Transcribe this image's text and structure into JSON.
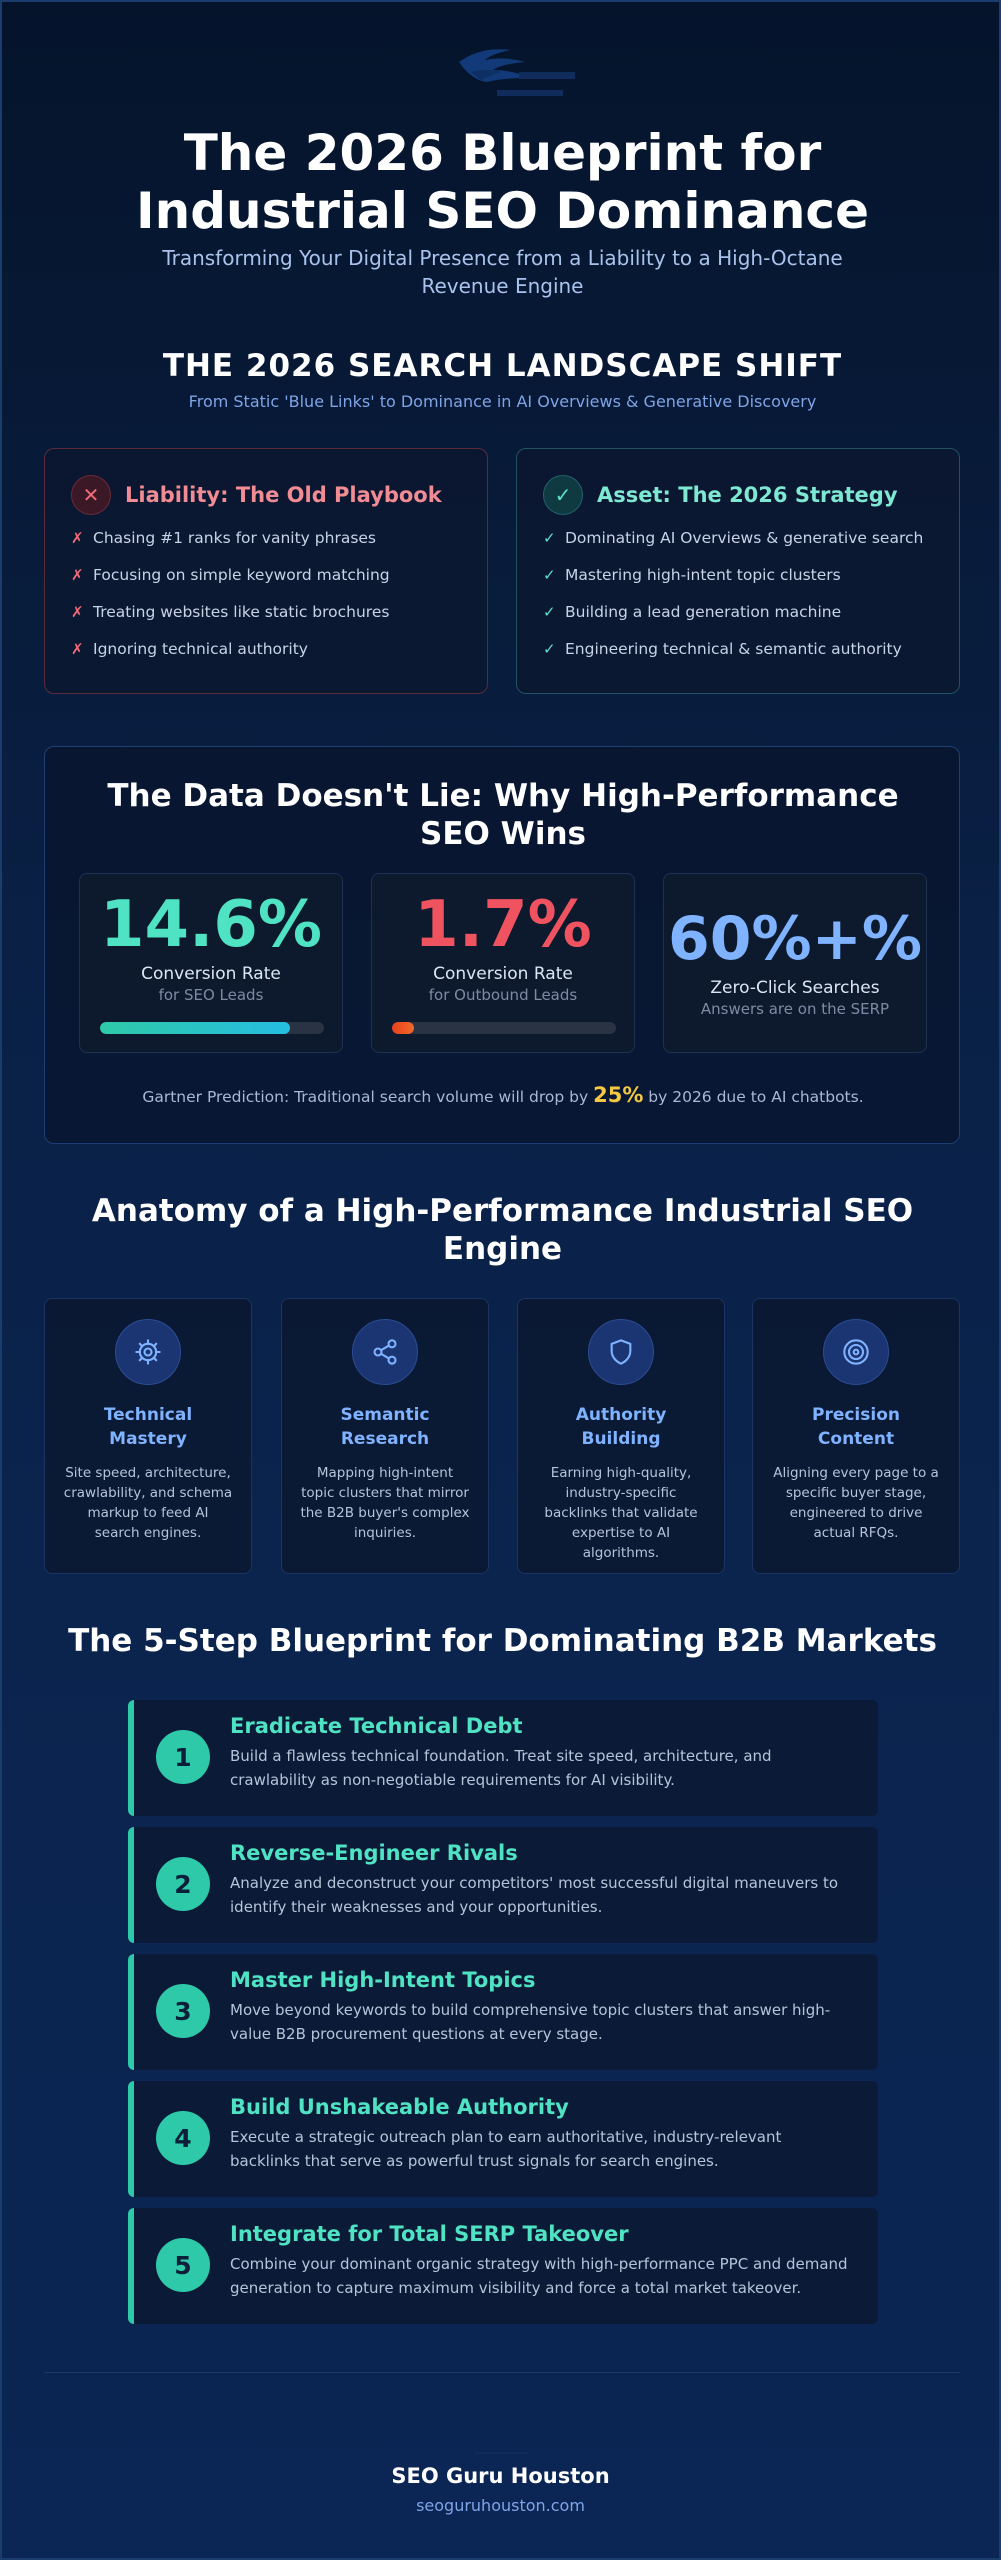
{
  "header": {
    "title": "The 2026 Blueprint for Industrial SEO Dominance",
    "subtitle": "Transforming Your Digital Presence from a Liability to a High-Octane Revenue Engine",
    "logo_icon": "eagle-logo-icon"
  },
  "landscape": {
    "title": "THE 2026 SEARCH LANDSCAPE SHIFT",
    "subtitle": "From Static 'Blue Links' to Dominance in AI Overviews & Generative Discovery",
    "liability": {
      "icon": "x-icon",
      "mark": "✗",
      "title": "Liability: The Old Playbook",
      "items": [
        "Chasing #1 ranks for vanity phrases",
        "Focusing on simple keyword matching",
        "Treating websites like static brochures",
        "Ignoring technical authority"
      ]
    },
    "asset": {
      "icon": "check-icon",
      "mark": "✓",
      "title": "Asset: The 2026 Strategy",
      "items": [
        "Dominating AI Overviews & generative search",
        "Mastering high-intent topic clusters",
        "Building a lead generation machine",
        "Engineering technical & semantic authority"
      ]
    }
  },
  "data": {
    "title": "The Data Doesn't Lie: Why High-Performance SEO Wins",
    "stats": [
      {
        "value": "14.6%",
        "label": "Conversion Rate",
        "sub": "for SEO Leads",
        "bar_fill_percent": 85,
        "color": "#4fe3c3"
      },
      {
        "value": "1.7%",
        "label": "Conversion Rate",
        "sub": "for Outbound Leads",
        "bar_fill_percent": 10,
        "color": "#ef5360"
      },
      {
        "value": "60%+%",
        "label": "Zero-Click Searches",
        "sub": "Answers are on the SERP",
        "color": "#7fb2ff"
      }
    ],
    "gartner_prefix": "Gartner Prediction: Traditional search volume will drop by ",
    "gartner_highlight": "25%",
    "gartner_suffix": " by 2026 due to AI chatbots."
  },
  "anatomy": {
    "title": "Anatomy of a High-Performance Industrial SEO Engine",
    "pillars": [
      {
        "icon": "gear-icon",
        "title": "Technical Mastery",
        "desc": "Site speed, architecture, crawlability, and schema markup to feed AI search engines."
      },
      {
        "icon": "share-icon",
        "title": "Semantic Research",
        "desc": "Mapping high-intent topic clusters that mirror the B2B buyer's complex inquiries."
      },
      {
        "icon": "shield-icon",
        "title": "Authority Building",
        "desc": "Earning high-quality, industry-specific backlinks that validate expertise to AI algorithms."
      },
      {
        "icon": "target-icon",
        "title": "Precision Content",
        "desc": "Aligning every page to a specific buyer stage, engineered to drive actual RFQs."
      }
    ]
  },
  "steps": {
    "title": "The 5-Step Blueprint for Dominating B2B Markets",
    "items": [
      {
        "num": "1",
        "title": "Eradicate Technical Debt",
        "desc": "Build a flawless technical foundation. Treat site speed, architecture, and crawlability as non-negotiable requirements for AI visibility."
      },
      {
        "num": "2",
        "title": "Reverse-Engineer Rivals",
        "desc": "Analyze and deconstruct your competitors' most successful digital maneuvers to identify their weaknesses and your opportunities."
      },
      {
        "num": "3",
        "title": "Master High-Intent Topics",
        "desc": "Move beyond keywords to build comprehensive topic clusters that answer high-value B2B procurement questions at every stage."
      },
      {
        "num": "4",
        "title": "Build Unshakeable Authority",
        "desc": "Execute a strategic outreach plan to earn authoritative, industry-relevant backlinks that serve as powerful trust signals for search engines."
      },
      {
        "num": "5",
        "title": "Integrate for Total SERP Takeover",
        "desc": "Combine your dominant organic strategy with high-performance PPC and demand generation to capture maximum visibility and force a total market takeover."
      }
    ]
  },
  "footer": {
    "brand": "SEO Guru Houston",
    "url": "seoguruhouston.com",
    "logo_icon": "small-logo-icon"
  }
}
